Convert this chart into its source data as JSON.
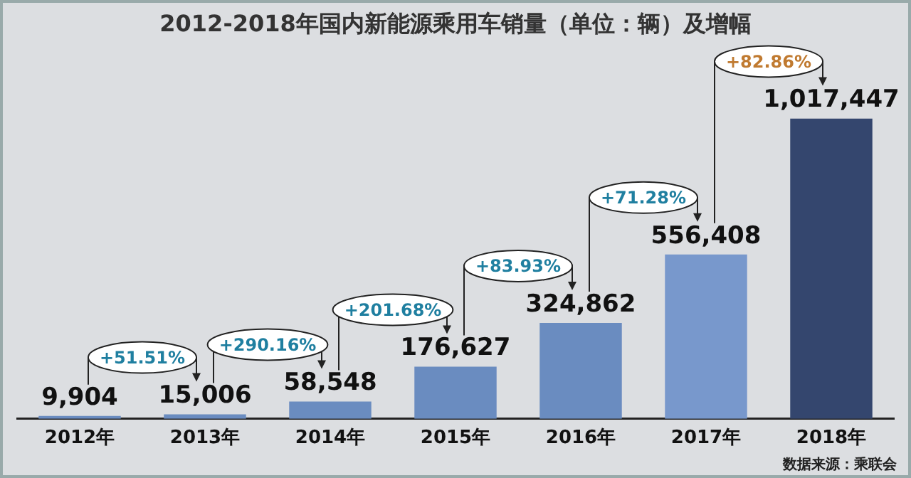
{
  "chart_data": {
    "type": "bar",
    "title": "2012-2018年国内新能源乘用车销量（单位：辆）及增幅",
    "categories": [
      "2012年",
      "2013年",
      "2014年",
      "2015年",
      "2016年",
      "2017年",
      "2018年"
    ],
    "values": [
      9904,
      15006,
      58548,
      176627,
      324862,
      556408,
      1017447
    ],
    "colors": [
      "#6a8cc0",
      "#6a8cc0",
      "#6a8cc0",
      "#6a8cc0",
      "#6a8cc0",
      "#7898cc",
      "#34466e"
    ],
    "value_labels": [
      "9,904",
      "15,006",
      "58,548",
      "176,627",
      "324,862",
      "556,408",
      "1,017,447"
    ],
    "tick_labels": "x",
    "grid": false,
    "legend": false,
    "annotations": [
      "+51.51%",
      "+290.16%",
      "+201.68%",
      "+83.93%",
      "+71.28%",
      "+82.86%",
      "数据来源：乘联会"
    ]
  }
}
